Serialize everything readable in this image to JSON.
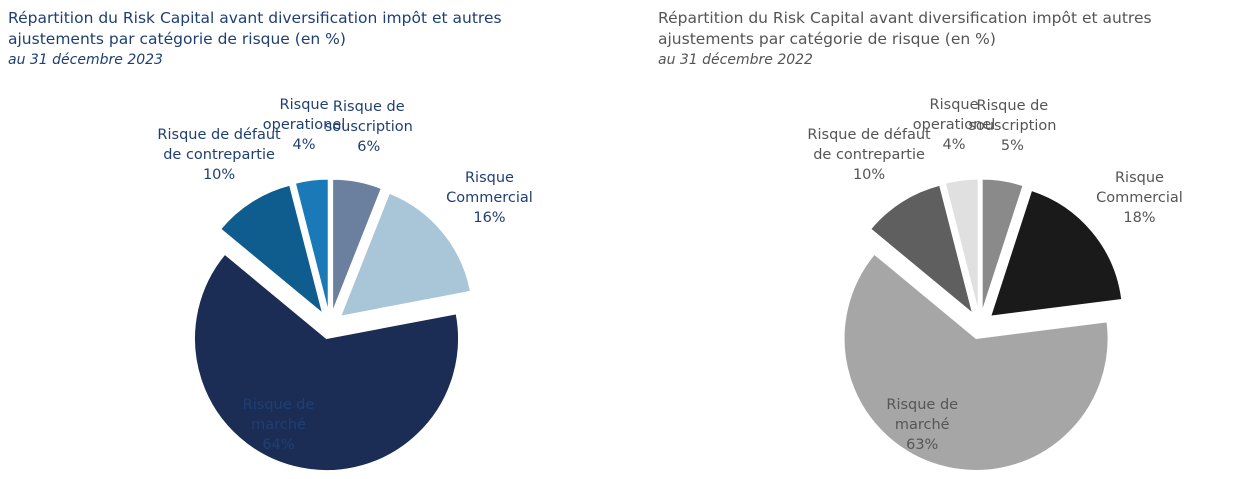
{
  "chart_data": [
    {
      "type": "pie",
      "title": "Répartition du Risk Capital avant diversification impôt et autres ajustements par catégorie de risque (en %)",
      "subtitle": "au 31 décembre 2023",
      "categories": [
        "Risque de souscription",
        "Risque Commercial",
        "Risque de marché",
        "Risque de défaut de contrepartie",
        "Risque operationel"
      ],
      "values": [
        6,
        16,
        64,
        10,
        4
      ],
      "value_labels": [
        "6%",
        "16%",
        "64%",
        "10%",
        "4%"
      ],
      "colors": [
        "#6b7f9e",
        "#a9c6d8",
        "#1b2d54",
        "#0f5c8e",
        "#1a7ab8"
      ],
      "text_color": "#1f3f73"
    },
    {
      "type": "pie",
      "title": "Répartition du Risk Capital avant diversification impôt et autres ajustements par catégorie de risque (en %)",
      "subtitle": "au 31 décembre 2022",
      "categories": [
        "Risque de souscription",
        "Risque Commercial",
        "Risque de marché",
        "Risque de défaut de contrepartie",
        "Risque operationel"
      ],
      "values": [
        5,
        18,
        63,
        10,
        4
      ],
      "value_labels": [
        "5%",
        "18%",
        "63%",
        "10%",
        "4%"
      ],
      "colors": [
        "#8a8a8a",
        "#1a1a1a",
        "#a6a6a6",
        "#5f5f5f",
        "#e0e0e0"
      ],
      "text_color": "#555555"
    }
  ]
}
